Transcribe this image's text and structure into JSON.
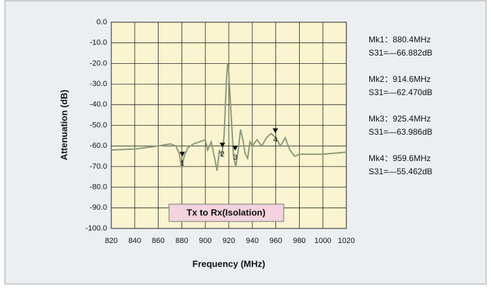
{
  "chart_data": {
    "type": "line",
    "xlabel": "Frequency (MHz)",
    "ylabel": "Attenuation (dB)",
    "annotation": "Tx to Rx(Isolation)",
    "color": "#8c9b7c",
    "xlim": [
      820,
      1020
    ],
    "ylim": [
      -100,
      0
    ],
    "xticks": [
      820,
      840,
      860,
      880,
      900,
      920,
      940,
      960,
      980,
      1000,
      1020
    ],
    "yticks": [
      {
        "value": 0,
        "label": "0.0"
      },
      {
        "value": -10,
        "label": "-10.0"
      },
      {
        "value": -20,
        "label": "-20.0"
      },
      {
        "value": -30,
        "label": "-30.0"
      },
      {
        "value": -40,
        "label": "-40.0"
      },
      {
        "value": -50,
        "label": "-50.0"
      },
      {
        "value": -60,
        "label": "-60.0"
      },
      {
        "value": -70,
        "label": "-70.0"
      },
      {
        "value": -80,
        "label": "-80.0"
      },
      {
        "value": -90,
        "label": "-90.0"
      },
      {
        "value": -100,
        "label": "-100.0"
      }
    ],
    "grid": true,
    "x": [
      820,
      840,
      860,
      870,
      875,
      878,
      880,
      882,
      885,
      890,
      895,
      900,
      902,
      905,
      908,
      910,
      912,
      914,
      916,
      918,
      919,
      920,
      922,
      924,
      926,
      928,
      930,
      932,
      934,
      936,
      938,
      940,
      944,
      948,
      952,
      956,
      960,
      964,
      968,
      972,
      976,
      980,
      990,
      1000,
      1010,
      1020
    ],
    "values": [
      -62,
      -61.5,
      -60,
      -59,
      -60,
      -64,
      -71,
      -65,
      -61,
      -59,
      -58,
      -57,
      -62,
      -58,
      -66,
      -72,
      -62,
      -65,
      -55,
      -28,
      -20,
      -25,
      -45,
      -65,
      -70,
      -62,
      -52,
      -57,
      -64,
      -66,
      -58,
      -60,
      -57,
      -60,
      -56,
      -54,
      -56,
      -60,
      -56,
      -62,
      -65,
      -64,
      -64,
      -64,
      -63.5,
      -63
    ],
    "markers": {
      "labels": [
        "1",
        "2",
        "3",
        "4"
      ],
      "x": [
        880.4,
        914.6,
        925.4,
        959.6
      ],
      "values": [
        -66.882,
        -62.47,
        -63.986,
        -55.462
      ]
    },
    "readouts": [
      [
        "Mk1：880.4MHz",
        "S31=—66.882dB"
      ],
      [
        "Mk2：914.6MHz",
        "S31=—62.470dB"
      ],
      [
        "Mk3：925.4MHz",
        "S31=—63.986dB"
      ],
      [
        "Mk4：959.6MHz",
        "S31=—55.462dB"
      ]
    ]
  }
}
